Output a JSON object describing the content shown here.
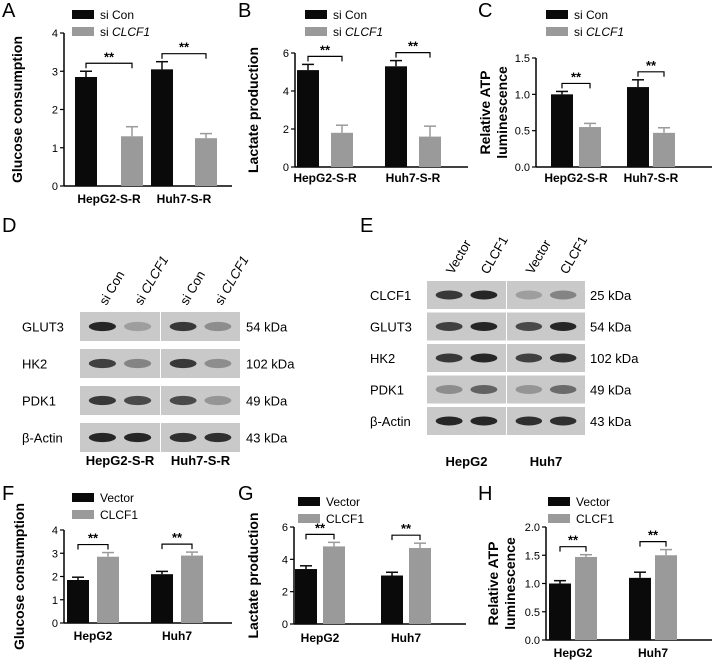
{
  "figure": {
    "panel_letters": [
      "A",
      "B",
      "C",
      "D",
      "E",
      "F",
      "G",
      "H"
    ],
    "colors": {
      "si_con": "#0a0a0a",
      "si_clcf1": "#9a9a9a",
      "vector": "#0a0a0a",
      "clcf1": "#9a9a9a",
      "blot_bg": "#c9c9c9",
      "band": "#1e1e1e"
    },
    "blot_D": {
      "lanes": [
        "si Con",
        "si CLCF1",
        "si Con",
        "si CLCF1"
      ],
      "rows": [
        "GLUT3",
        "HK2",
        "PDK1",
        "β-Actin"
      ],
      "sizes": [
        "54 kDa",
        "102 kDa",
        "49 kDa",
        "43 kDa"
      ],
      "groups": [
        "HepG2-S-R",
        "Huh7-S-R"
      ]
    },
    "blot_E": {
      "lanes": [
        "Vector",
        "CLCF1",
        "Vector",
        "CLCF1"
      ],
      "rows": [
        "CLCF1",
        "GLUT3",
        "HK2",
        "PDK1",
        "β-Actin"
      ],
      "sizes": [
        "25 kDa",
        "54 kDa",
        "102 kDa",
        "49 kDa",
        "43 kDa"
      ],
      "groups": [
        "HepG2",
        "Huh7"
      ]
    }
  },
  "chart_data": [
    {
      "id": "A",
      "type": "bar",
      "categories": [
        "HepG2-S-R",
        "Huh7-S-R"
      ],
      "series": [
        {
          "name": "si Con",
          "values": [
            2.85,
            3.05
          ],
          "errors": [
            0.15,
            0.2
          ]
        },
        {
          "name": "si CLCF1",
          "values": [
            1.3,
            1.25
          ],
          "errors": [
            0.25,
            0.12
          ]
        }
      ],
      "ylabel": "Glucose consumption",
      "ylim": [
        0,
        4
      ],
      "yticks": [
        "0",
        "1",
        "2",
        "3",
        "4"
      ],
      "sig": [
        "**",
        "**"
      ]
    },
    {
      "id": "B",
      "type": "bar",
      "categories": [
        "HepG2-S-R",
        "Huh7-S-R"
      ],
      "series": [
        {
          "name": "si Con",
          "values": [
            5.1,
            5.3
          ],
          "errors": [
            0.3,
            0.3
          ]
        },
        {
          "name": "si CLCF1",
          "values": [
            1.8,
            1.6
          ],
          "errors": [
            0.4,
            0.55
          ]
        }
      ],
      "ylabel": "Lactate production",
      "ylim": [
        0,
        6
      ],
      "yticks": [
        "0",
        "2",
        "4",
        "6"
      ],
      "sig": [
        "**",
        "**"
      ]
    },
    {
      "id": "C",
      "type": "bar",
      "categories": [
        "HepG2-S-R",
        "Huh7-S-R"
      ],
      "series": [
        {
          "name": "si Con",
          "values": [
            1.0,
            1.1
          ],
          "errors": [
            0.04,
            0.1
          ]
        },
        {
          "name": "si CLCF1",
          "values": [
            0.55,
            0.47
          ],
          "errors": [
            0.05,
            0.07
          ]
        }
      ],
      "ylabel": "Relative ATP luminescence",
      "ylim": [
        0,
        1.5
      ],
      "yticks": [
        "0.0",
        "0.5",
        "1.0",
        "1.5"
      ],
      "sig": [
        "**",
        "**"
      ]
    },
    {
      "id": "F",
      "type": "bar",
      "categories": [
        "HepG2",
        "Huh7"
      ],
      "series": [
        {
          "name": "Vector",
          "values": [
            1.85,
            2.1
          ],
          "errors": [
            0.12,
            0.12
          ]
        },
        {
          "name": "CLCF1",
          "values": [
            2.85,
            2.9
          ],
          "errors": [
            0.18,
            0.15
          ]
        }
      ],
      "ylabel": "Glucose consumption",
      "ylim": [
        0,
        4
      ],
      "yticks": [
        "0",
        "1",
        "2",
        "3",
        "4"
      ],
      "sig": [
        "**",
        "**"
      ]
    },
    {
      "id": "G",
      "type": "bar",
      "categories": [
        "HepG2",
        "Huh7"
      ],
      "series": [
        {
          "name": "Vector",
          "values": [
            3.4,
            3.0
          ],
          "errors": [
            0.2,
            0.2
          ]
        },
        {
          "name": "CLCF1",
          "values": [
            4.8,
            4.7
          ],
          "errors": [
            0.25,
            0.3
          ]
        }
      ],
      "ylabel": "Lactate production",
      "ylim": [
        0,
        6
      ],
      "yticks": [
        "0",
        "2",
        "4",
        "6"
      ],
      "sig": [
        "**",
        "**"
      ]
    },
    {
      "id": "H",
      "type": "bar",
      "categories": [
        "HepG2",
        "Huh7"
      ],
      "series": [
        {
          "name": "Vector",
          "values": [
            1.0,
            1.1
          ],
          "errors": [
            0.05,
            0.1
          ]
        },
        {
          "name": "CLCF1",
          "values": [
            1.47,
            1.5
          ],
          "errors": [
            0.04,
            0.1
          ]
        }
      ],
      "ylabel": "Relative ATP luminescence",
      "ylim": [
        0,
        2.0
      ],
      "yticks": [
        "0.0",
        "0.5",
        "1.0",
        "1.5",
        "2.0"
      ],
      "sig": [
        "**",
        "**"
      ]
    }
  ]
}
